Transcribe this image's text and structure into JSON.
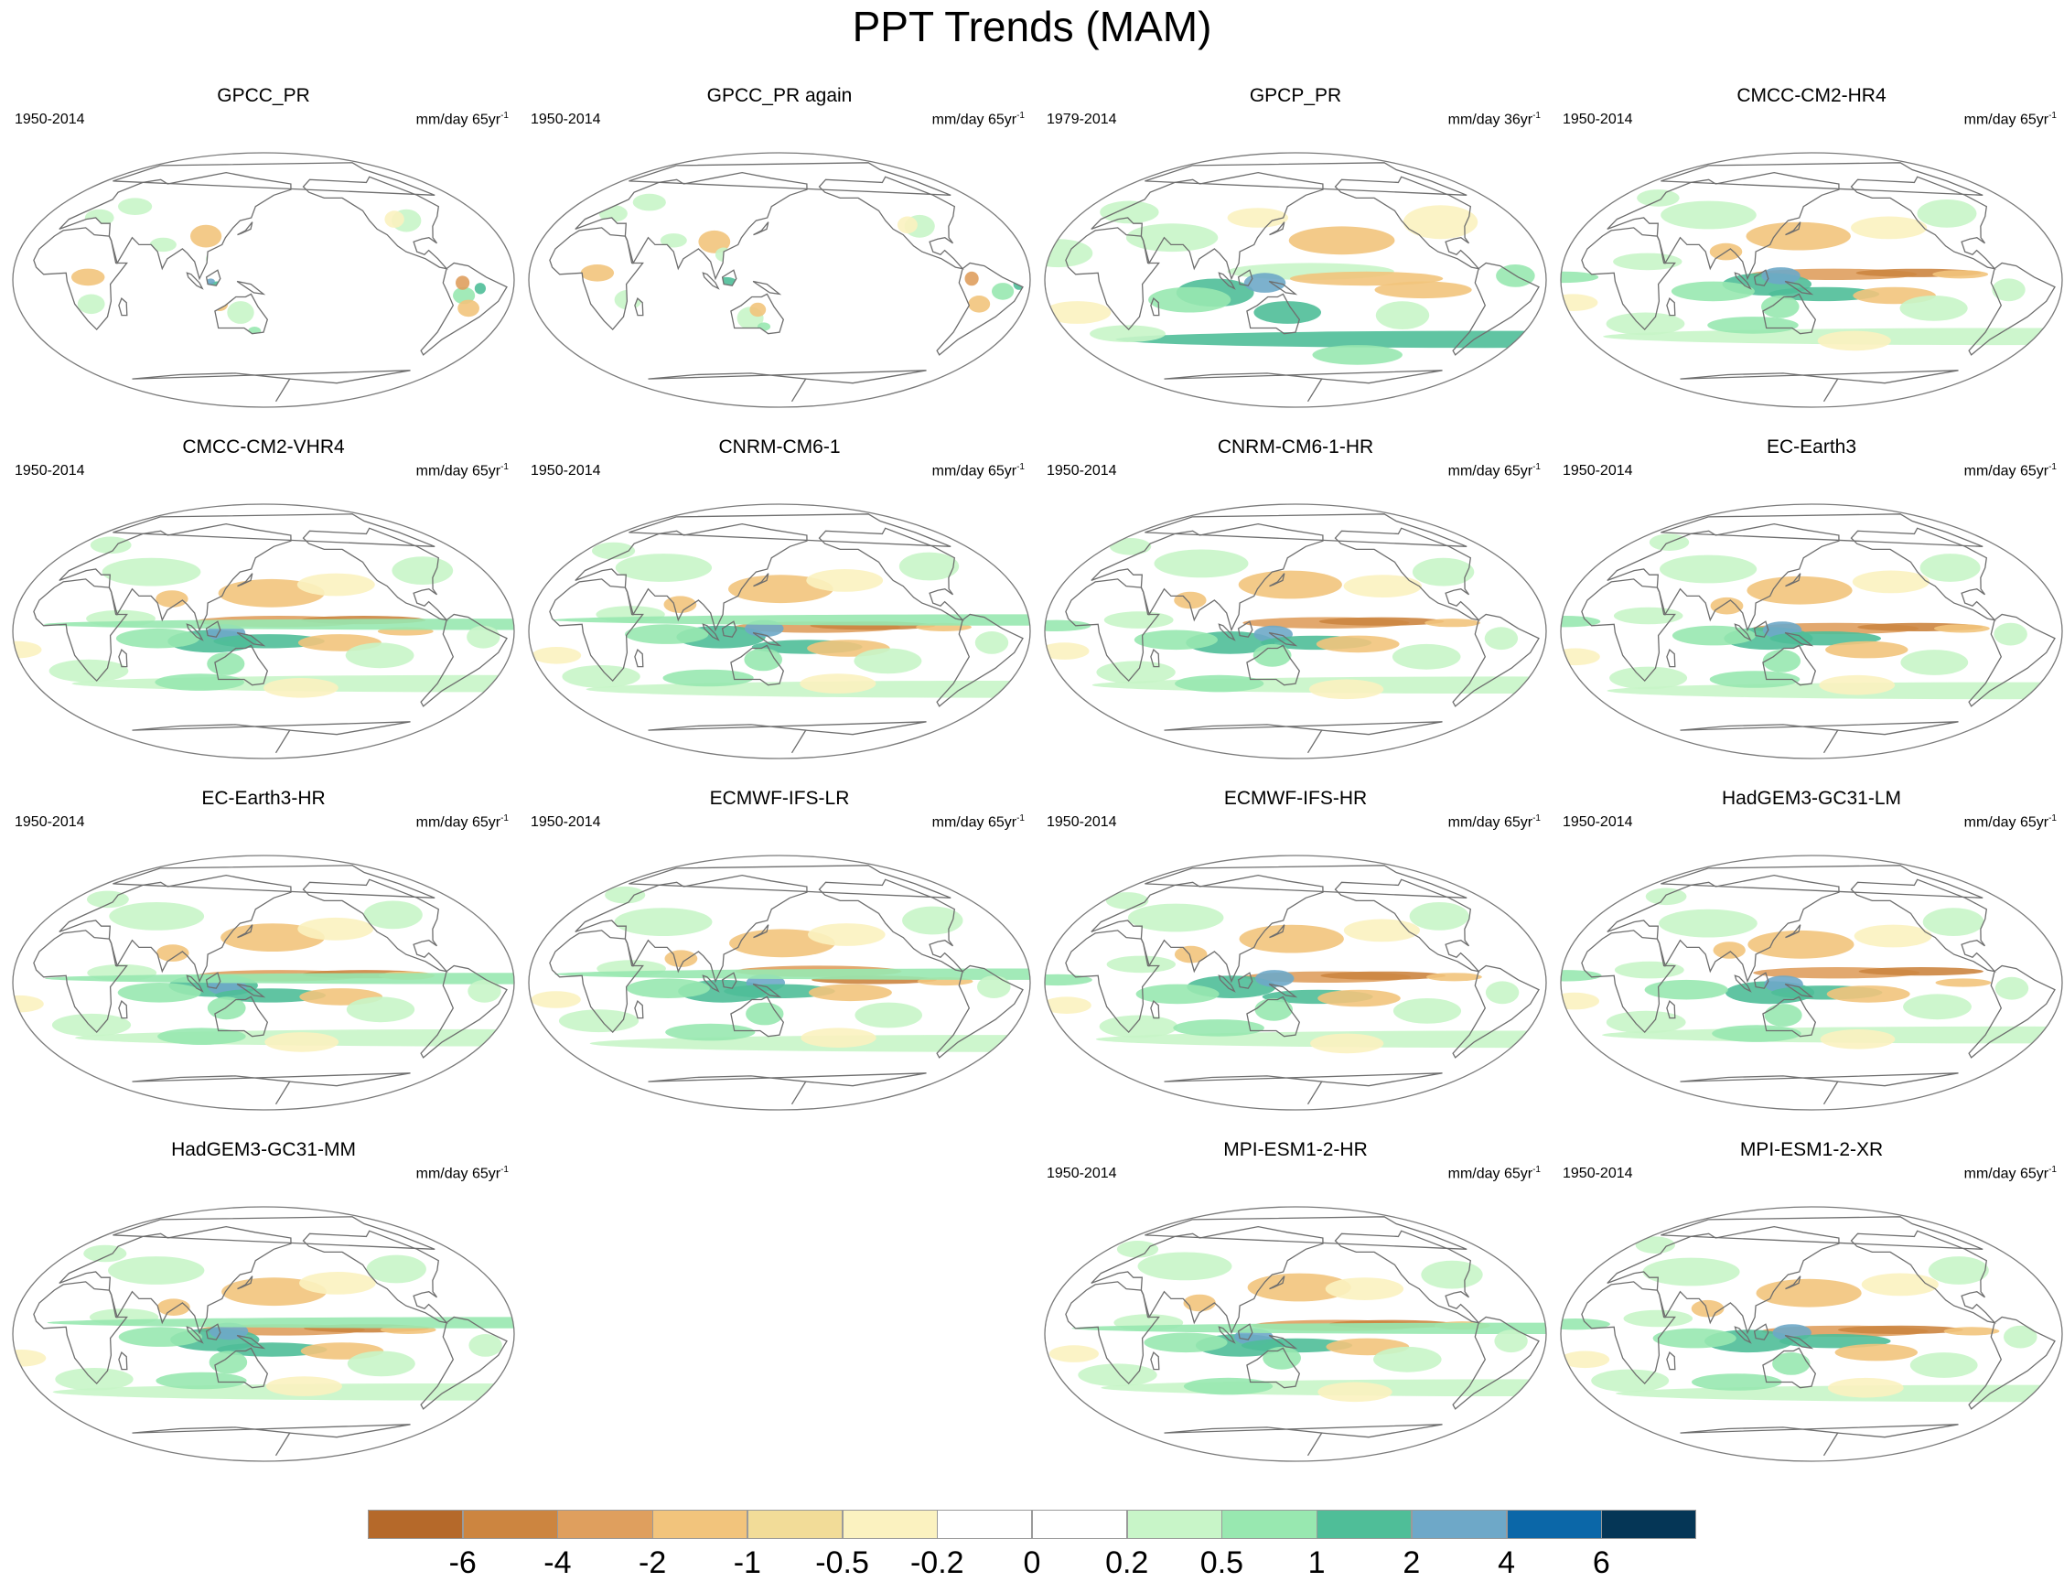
{
  "title": "PPT Trends (MAM)",
  "units_prefix": "mm/day",
  "panels": [
    {
      "name": "GPCC_PR",
      "period": "1950-2014",
      "window": "65yr",
      "pattern": "land"
    },
    {
      "name": "GPCC_PR again",
      "period": "1950-2014",
      "window": "65yr",
      "pattern": "land"
    },
    {
      "name": "GPCP_PR",
      "period": "1979-2014",
      "window": "36yr",
      "pattern": "obs"
    },
    {
      "name": "CMCC-CM2-HR4",
      "period": "1950-2014",
      "window": "65yr",
      "pattern": "model"
    },
    {
      "name": "CMCC-CM2-VHR4",
      "period": "1950-2014",
      "window": "65yr",
      "pattern": "model"
    },
    {
      "name": "CNRM-CM6-1",
      "period": "1950-2014",
      "window": "65yr",
      "pattern": "model"
    },
    {
      "name": "CNRM-CM6-1-HR",
      "period": "1950-2014",
      "window": "65yr",
      "pattern": "model"
    },
    {
      "name": "EC-Earth3",
      "period": "1950-2014",
      "window": "65yr",
      "pattern": "model"
    },
    {
      "name": "EC-Earth3-HR",
      "period": "1950-2014",
      "window": "65yr",
      "pattern": "model"
    },
    {
      "name": "ECMWF-IFS-LR",
      "period": "1950-2014",
      "window": "65yr",
      "pattern": "model"
    },
    {
      "name": "ECMWF-IFS-HR",
      "period": "1950-2014",
      "window": "65yr",
      "pattern": "model"
    },
    {
      "name": "HadGEM3-GC31-LM",
      "period": "1950-2014",
      "window": "65yr",
      "pattern": "model"
    },
    {
      "name": "HadGEM3-GC31-MM",
      "period": "",
      "window": "65yr",
      "pattern": "model"
    },
    {
      "name": "MPI-ESM1-2-HR",
      "period": "1950-2014",
      "window": "65yr",
      "pattern": "model"
    },
    {
      "name": "MPI-ESM1-2-XR",
      "period": "1950-2014",
      "window": "65yr",
      "pattern": "model"
    }
  ],
  "colorbar": {
    "colors": [
      "#b5692a",
      "#cc8540",
      "#df9f5e",
      "#f2c47c",
      "#f2dc98",
      "#fbf2c0",
      "#ffffff",
      "#ffffff",
      "#c8f5c8",
      "#98e8b0",
      "#4fbe98",
      "#6ea8c8",
      "#0b67a8",
      "#053656"
    ],
    "labels": [
      "-6",
      "-4",
      "-2",
      "-1",
      "-0.5",
      "-0.2",
      "0",
      "0.2",
      "0.5",
      "1",
      "2",
      "4",
      "6"
    ]
  }
}
